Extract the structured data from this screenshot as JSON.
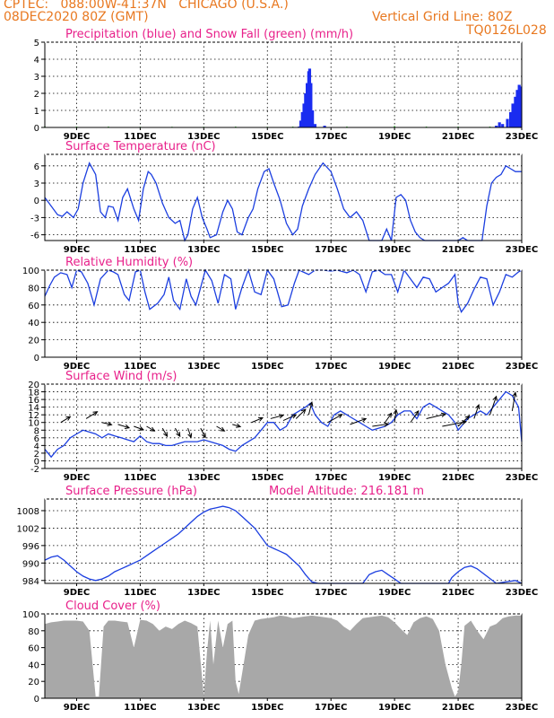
{
  "header": {
    "line1": "CPTEC:   088:00W-41:37N   CHICAGO (U.S.A.)",
    "line2_left": "08DEC2020 80Z (GMT)",
    "line2_right": "Vertical Grid Line: 80Z",
    "code": "TQ0126L028"
  },
  "colors": {
    "header": "#e87820",
    "title": "#e8208a",
    "precip": "#1a2cf0",
    "snow": "#20c020",
    "line": "#1c3fe0",
    "cloud": "#a8a8a8",
    "grid": "#000000"
  },
  "x_axis": {
    "start_day": 8,
    "end_day": 23,
    "tick_labels": [
      "9DEC",
      "11DEC",
      "13DEC",
      "15DEC",
      "17DEC",
      "19DEC",
      "21DEC",
      "23DEC"
    ],
    "tick_days": [
      9,
      11,
      13,
      15,
      17,
      19,
      21,
      23
    ]
  },
  "chart_data": [
    {
      "type": "bar",
      "title": "Precipitation (blue) and Snow Fall (green) (mm/h)",
      "ylim": [
        0,
        5
      ],
      "yticks": [
        "0",
        "1",
        "2",
        "3",
        "4",
        "5"
      ],
      "series": [
        {
          "name": "Precipitation",
          "color": "#1a2cf0",
          "points": [
            [
              16.0,
              0.05
            ],
            [
              16.05,
              0.4
            ],
            [
              16.1,
              0.9
            ],
            [
              16.15,
              1.4
            ],
            [
              16.2,
              2.0
            ],
            [
              16.25,
              2.6
            ],
            [
              16.3,
              3.3
            ],
            [
              16.33,
              3.45
            ],
            [
              16.37,
              2.6
            ],
            [
              16.42,
              1.0
            ],
            [
              16.5,
              0.2
            ],
            [
              16.8,
              0.1
            ],
            [
              22.2,
              0.1
            ],
            [
              22.3,
              0.3
            ],
            [
              22.4,
              0.2
            ],
            [
              22.55,
              0.5
            ],
            [
              22.65,
              0.9
            ],
            [
              22.72,
              1.4
            ],
            [
              22.8,
              1.8
            ],
            [
              22.86,
              2.2
            ],
            [
              22.92,
              2.5
            ],
            [
              22.97,
              2.4
            ]
          ]
        },
        {
          "name": "Snow Fall",
          "color": "#20c020",
          "points": [
            [
              8.0,
              0.06
            ],
            [
              9.0,
              0.05
            ],
            [
              10.0,
              0.05
            ],
            [
              11.0,
              0.04
            ],
            [
              12.0,
              0.04
            ],
            [
              13.0,
              0.04
            ],
            [
              14.0,
              0.05
            ],
            [
              15.0,
              0.04
            ],
            [
              15.8,
              0.05
            ],
            [
              17.5,
              0.05
            ],
            [
              19.0,
              0.08
            ],
            [
              20.0,
              0.05
            ],
            [
              21.0,
              0.05
            ],
            [
              22.0,
              0.05
            ]
          ]
        }
      ]
    },
    {
      "type": "line",
      "title": "Surface Temperature (nC)",
      "ylim": [
        -7,
        8
      ],
      "yticks": [
        "-6",
        "-3",
        "0",
        "3",
        "6"
      ],
      "ytick_values": [
        -6,
        -3,
        0,
        3,
        6
      ],
      "gaps": [
        [
          11.3,
          15.3,
          -7
        ],
        [
          20.8,
          21.2,
          -6
        ]
      ],
      "x": [
        8.0,
        8.2,
        8.4,
        8.55,
        8.7,
        8.9,
        9.05,
        9.2,
        9.4,
        9.6,
        9.75,
        9.9,
        10.0,
        10.15,
        10.3,
        10.45,
        10.6,
        10.8,
        10.95,
        11.1,
        11.25,
        11.35,
        11.5,
        11.7,
        11.9,
        12.1,
        12.25,
        12.4,
        12.5,
        12.65,
        12.8,
        12.95,
        13.1,
        13.2,
        13.4,
        13.6,
        13.75,
        13.9,
        14.05,
        14.2,
        14.4,
        14.55,
        14.7,
        14.9,
        15.05,
        15.2,
        15.4,
        15.6,
        15.8,
        15.95,
        16.1,
        16.3,
        16.5,
        16.75,
        17.0,
        17.2,
        17.4,
        17.6,
        17.8,
        18.0,
        18.2,
        18.4,
        18.6,
        18.75,
        18.9,
        19.05,
        19.2,
        19.35,
        19.5,
        19.65,
        19.8,
        19.95,
        20.1,
        20.3,
        20.5,
        20.7,
        20.85,
        21.0,
        21.15,
        21.3,
        21.45,
        21.6,
        21.75,
        21.9,
        22.05,
        22.2,
        22.35,
        22.5,
        22.65,
        22.8,
        23.0
      ],
      "y": [
        0.5,
        -1.0,
        -2.5,
        -2.8,
        -2.0,
        -3.0,
        -1.5,
        3.0,
        6.5,
        4.5,
        -2.0,
        -3.0,
        -1.0,
        -1.2,
        -3.5,
        0.5,
        2.0,
        -1.5,
        -3.5,
        2.0,
        5.0,
        4.5,
        3.0,
        -0.5,
        -3.0,
        -4.0,
        -3.5,
        -7.5,
        -6.0,
        -1.5,
        0.5,
        -3.0,
        -5.0,
        -6.5,
        -6.0,
        -2.0,
        0.0,
        -1.5,
        -5.5,
        -6.0,
        -3.0,
        -1.5,
        2.0,
        5.0,
        5.5,
        3.0,
        0.0,
        -4.0,
        -6.0,
        -5.0,
        -1.0,
        2.0,
        4.5,
        6.5,
        5.0,
        2.0,
        -1.5,
        -3.0,
        -2.0,
        -3.5,
        -8.0,
        -8.0,
        -8.0,
        -5.0,
        -7.0,
        0.5,
        1.0,
        0.0,
        -3.5,
        -5.5,
        -6.5,
        -7.5,
        -8.0,
        -8.0,
        -8.0,
        -8.0,
        -7.0,
        -8.0,
        -6.5,
        -8.0,
        -8.0,
        -8.0,
        -7.0,
        -1.0,
        3.0,
        4.0,
        4.5,
        6.0,
        5.5,
        5.0,
        5.0
      ]
    },
    {
      "type": "line",
      "title": "Relative Humidity (%)",
      "ylim": [
        0,
        100
      ],
      "yticks": [
        "0",
        "20",
        "40",
        "60",
        "80",
        "100"
      ],
      "ytick_values": [
        0,
        20,
        40,
        60,
        80,
        100
      ],
      "x": [
        8.0,
        8.15,
        8.3,
        8.5,
        8.7,
        8.85,
        9.0,
        9.15,
        9.35,
        9.55,
        9.75,
        10.0,
        10.15,
        10.3,
        10.5,
        10.65,
        10.85,
        11.0,
        11.15,
        11.3,
        11.55,
        11.75,
        11.9,
        12.05,
        12.25,
        12.45,
        12.6,
        12.75,
        12.9,
        13.05,
        13.25,
        13.45,
        13.65,
        13.85,
        14.0,
        14.2,
        14.4,
        14.6,
        14.8,
        15.0,
        15.2,
        15.45,
        15.65,
        15.85,
        16.0,
        16.3,
        16.5,
        16.75,
        17.0,
        17.2,
        17.5,
        17.7,
        17.9,
        18.1,
        18.3,
        18.5,
        18.7,
        18.9,
        19.1,
        19.3,
        19.5,
        19.7,
        19.9,
        20.1,
        20.3,
        20.5,
        20.7,
        20.9,
        21.0,
        21.1,
        21.3,
        21.5,
        21.7,
        21.9,
        22.1,
        22.3,
        22.5,
        22.7,
        22.9,
        23.0
      ],
      "y": [
        70,
        82,
        92,
        97,
        95,
        80,
        100,
        98,
        85,
        60,
        90,
        100,
        98,
        95,
        72,
        65,
        98,
        100,
        75,
        55,
        62,
        72,
        92,
        65,
        55,
        90,
        70,
        60,
        80,
        100,
        88,
        62,
        95,
        90,
        55,
        80,
        100,
        75,
        72,
        100,
        90,
        58,
        60,
        85,
        100,
        95,
        100,
        100,
        99,
        100,
        97,
        100,
        95,
        75,
        98,
        100,
        95,
        95,
        75,
        100,
        90,
        80,
        92,
        90,
        75,
        80,
        85,
        95,
        62,
        52,
        62,
        78,
        92,
        90,
        60,
        75,
        95,
        92,
        98,
        100
      ]
    },
    {
      "type": "line",
      "title": "Surface Wind (m/s)",
      "ylim": [
        -2,
        20
      ],
      "yticks": [
        "-2",
        "0",
        "2",
        "4",
        "6",
        "8",
        "10",
        "12",
        "14",
        "16",
        "18",
        "20"
      ],
      "ytick_values": [
        -2,
        0,
        2,
        4,
        6,
        8,
        10,
        12,
        14,
        16,
        18,
        20
      ],
      "x": [
        8.0,
        8.2,
        8.4,
        8.6,
        8.8,
        9.0,
        9.2,
        9.4,
        9.6,
        9.8,
        10.0,
        10.2,
        10.4,
        10.6,
        10.8,
        11.0,
        11.2,
        11.4,
        11.6,
        11.8,
        12.0,
        12.2,
        12.4,
        12.6,
        12.8,
        13.0,
        13.2,
        13.4,
        13.6,
        13.8,
        14.0,
        14.2,
        14.4,
        14.6,
        14.8,
        15.0,
        15.2,
        15.4,
        15.6,
        15.8,
        16.0,
        16.2,
        16.35,
        16.5,
        16.7,
        16.9,
        17.1,
        17.3,
        17.5,
        17.7,
        17.9,
        18.1,
        18.3,
        18.5,
        18.7,
        18.9,
        19.1,
        19.3,
        19.5,
        19.7,
        19.9,
        20.1,
        20.3,
        20.5,
        20.7,
        20.9,
        21.0,
        21.1,
        21.3,
        21.5,
        21.7,
        21.9,
        22.1,
        22.3,
        22.5,
        22.7,
        22.9,
        23.0
      ],
      "y": [
        3,
        1,
        3,
        4,
        6,
        7,
        8,
        7.5,
        7,
        6,
        7,
        6.5,
        6,
        5.5,
        5,
        6.5,
        5,
        4.5,
        4.5,
        4,
        4,
        4.5,
        5,
        5,
        5,
        5.5,
        5,
        4.5,
        4,
        3,
        2.5,
        4,
        5,
        6,
        8,
        10,
        10,
        8,
        9,
        12,
        13,
        14,
        15,
        12,
        10,
        9,
        12,
        13,
        12,
        11,
        10,
        9,
        8,
        8.5,
        9,
        10,
        12,
        13,
        13,
        11,
        14,
        15,
        14,
        13,
        12,
        10,
        8,
        9,
        11,
        12,
        13,
        12,
        14,
        16,
        18,
        17,
        14,
        5
      ],
      "arrows": [
        {
          "x": 8.5,
          "y": 10,
          "dx": 0.3,
          "dy": 0.5
        },
        {
          "x": 9.3,
          "y": 11,
          "dx": 0.35,
          "dy": 0.6
        },
        {
          "x": 9.8,
          "y": 10,
          "dx": 0.3,
          "dy": -0.2
        },
        {
          "x": 10.3,
          "y": 9.5,
          "dx": 0.35,
          "dy": -0.3
        },
        {
          "x": 10.8,
          "y": 9,
          "dx": 0.3,
          "dy": -0.3
        },
        {
          "x": 11.2,
          "y": 9,
          "dx": 0.25,
          "dy": -0.4
        },
        {
          "x": 11.7,
          "y": 8.5,
          "dx": 0.15,
          "dy": -0.7
        },
        {
          "x": 12.1,
          "y": 8.5,
          "dx": 0.15,
          "dy": -0.7
        },
        {
          "x": 12.5,
          "y": 8.5,
          "dx": 0.1,
          "dy": -0.8
        },
        {
          "x": 12.9,
          "y": 8.5,
          "dx": 0.15,
          "dy": -0.8
        },
        {
          "x": 13.4,
          "y": 9,
          "dx": 0.25,
          "dy": -0.4
        },
        {
          "x": 13.9,
          "y": 9.5,
          "dx": 0.25,
          "dy": -0.2
        },
        {
          "x": 14.5,
          "y": 10,
          "dx": 0.35,
          "dy": 0.4
        },
        {
          "x": 15.1,
          "y": 11,
          "dx": 0.4,
          "dy": 0.3
        },
        {
          "x": 15.5,
          "y": 10.5,
          "dx": 0.4,
          "dy": 0.5
        },
        {
          "x": 15.9,
          "y": 11,
          "dx": 0.3,
          "dy": 0.8
        },
        {
          "x": 16.3,
          "y": 12,
          "dx": 0.1,
          "dy": 1.1
        },
        {
          "x": 16.9,
          "y": 10,
          "dx": 0.45,
          "dy": 0.7
        },
        {
          "x": 17.6,
          "y": 9.5,
          "dx": 0.5,
          "dy": 0.5
        },
        {
          "x": 18.3,
          "y": 9,
          "dx": 0.5,
          "dy": 0.2
        },
        {
          "x": 18.7,
          "y": 10,
          "dx": 0.2,
          "dy": 0.8
        },
        {
          "x": 19.0,
          "y": 10,
          "dx": 0.05,
          "dy": 1.1
        },
        {
          "x": 19.5,
          "y": 10,
          "dx": 0.25,
          "dy": 1.0
        },
        {
          "x": 20.0,
          "y": 11,
          "dx": 0.6,
          "dy": 0.4
        },
        {
          "x": 20.5,
          "y": 9,
          "dx": 0.75,
          "dy": 0.4
        },
        {
          "x": 21.0,
          "y": 9,
          "dx": 0.35,
          "dy": 0.9
        },
        {
          "x": 21.5,
          "y": 11,
          "dx": 0.15,
          "dy": 1.2
        },
        {
          "x": 22.0,
          "y": 12,
          "dx": 0.2,
          "dy": 1.6
        },
        {
          "x": 22.7,
          "y": 13,
          "dx": 0.1,
          "dy": 1.6
        }
      ]
    },
    {
      "type": "line",
      "title": "Surface Pressure (hPa)",
      "subtitle": "Model Altitude: 216.181 m",
      "ylim": [
        983,
        1012
      ],
      "yticks": [
        "984",
        "990",
        "996",
        "1002",
        "1008"
      ],
      "ytick_values": [
        984,
        990,
        996,
        1002,
        1008
      ],
      "gaps": [
        [
          17.2,
          18.0,
          983
        ],
        [
          19.3,
          20.7,
          983
        ],
        [
          21.6,
          23.0,
          983
        ]
      ],
      "x": [
        8.0,
        8.2,
        8.4,
        8.6,
        8.8,
        9.0,
        9.2,
        9.4,
        9.6,
        9.8,
        10.0,
        10.2,
        10.4,
        10.6,
        10.8,
        11.0,
        11.2,
        11.4,
        11.6,
        11.8,
        12.0,
        12.2,
        12.4,
        12.6,
        12.8,
        13.0,
        13.2,
        13.4,
        13.6,
        13.8,
        14.0,
        14.2,
        14.4,
        14.6,
        14.8,
        15.0,
        15.2,
        15.4,
        15.6,
        15.8,
        16.0,
        16.2,
        16.4,
        16.6,
        16.8,
        17.0,
        17.2,
        18.0,
        18.2,
        18.4,
        18.6,
        18.8,
        19.0,
        19.2,
        19.3,
        20.7,
        20.8,
        21.0,
        21.2,
        21.4,
        21.6,
        22.2,
        22.5,
        22.8,
        23.0
      ],
      "y": [
        991,
        992,
        992.5,
        991,
        989,
        987,
        985.5,
        984.5,
        984,
        984.5,
        985.5,
        987,
        988,
        989,
        990,
        991,
        992.5,
        994,
        995.5,
        997,
        998.5,
        1000,
        1002,
        1004,
        1006,
        1007.5,
        1008.5,
        1009,
        1009.5,
        1009,
        1008,
        1006,
        1004,
        1002,
        999,
        996,
        995,
        994,
        993,
        991,
        989,
        986,
        983.5,
        983,
        983,
        983,
        983,
        983,
        986,
        987,
        987.5,
        986,
        984.5,
        983,
        983,
        983,
        985,
        987,
        988.5,
        989,
        988,
        983,
        983.5,
        984,
        983
      ]
    },
    {
      "type": "area",
      "title": "Cloud Cover (%)",
      "ylim": [
        0,
        100
      ],
      "yticks": [
        "0",
        "20",
        "40",
        "60",
        "80",
        "100"
      ],
      "ytick_values": [
        0,
        20,
        40,
        60,
        80,
        100
      ],
      "x": [
        8.0,
        8.2,
        8.4,
        8.6,
        8.8,
        9.0,
        9.2,
        9.4,
        9.6,
        9.7,
        9.85,
        10.0,
        10.2,
        10.4,
        10.6,
        10.8,
        11.0,
        11.2,
        11.4,
        11.6,
        11.8,
        12.0,
        12.2,
        12.4,
        12.6,
        12.8,
        13.0,
        13.1,
        13.2,
        13.3,
        13.45,
        13.6,
        13.75,
        13.9,
        14.0,
        14.1,
        14.25,
        14.4,
        14.6,
        14.8,
        15.0,
        15.2,
        15.4,
        15.6,
        15.8,
        16.0,
        16.2,
        16.4,
        16.6,
        16.8,
        17.0,
        17.2,
        17.4,
        17.6,
        17.8,
        18.0,
        18.2,
        18.4,
        18.6,
        18.8,
        19.0,
        19.2,
        19.4,
        19.6,
        19.8,
        20.0,
        20.2,
        20.4,
        20.6,
        20.8,
        20.9,
        21.0,
        21.1,
        21.2,
        21.4,
        21.6,
        21.8,
        22.0,
        22.2,
        22.4,
        22.6,
        22.8,
        23.0
      ],
      "y": [
        88,
        90,
        91,
        92,
        92,
        92,
        91,
        80,
        2,
        2,
        85,
        92,
        92,
        91,
        90,
        60,
        93,
        92,
        88,
        80,
        85,
        82,
        88,
        92,
        89,
        85,
        3,
        55,
        92,
        40,
        92,
        60,
        88,
        92,
        20,
        5,
        40,
        75,
        92,
        94,
        95,
        96,
        98,
        97,
        95,
        96,
        97,
        98,
        97,
        96,
        95,
        92,
        85,
        80,
        88,
        95,
        96,
        97,
        98,
        96,
        90,
        82,
        75,
        90,
        95,
        97,
        94,
        80,
        40,
        12,
        2,
        8,
        40,
        86,
        92,
        80,
        70,
        85,
        88,
        95,
        97,
        98,
        98
      ]
    }
  ]
}
